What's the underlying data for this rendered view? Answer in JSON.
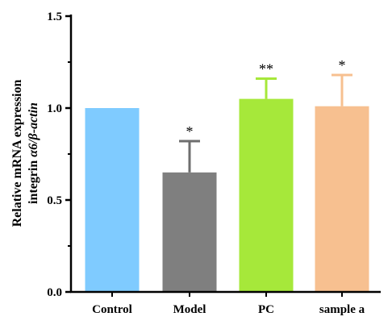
{
  "chart_data": {
    "type": "bar",
    "categories": [
      "Control",
      "Model",
      "PC",
      "sample a"
    ],
    "values": [
      1.0,
      0.65,
      1.05,
      1.01
    ],
    "errors": [
      0.0,
      0.17,
      0.11,
      0.17
    ],
    "significance": [
      "",
      "*",
      "**",
      "*"
    ],
    "colors": [
      "#7fcbff",
      "#7f7f7f",
      "#a6e83a",
      "#f7c090"
    ],
    "title": "",
    "xlabel": "",
    "ylabel": {
      "line1": "Relative mRNA expression",
      "line2_prefix": "integrin ",
      "line2_italic": "α6/β-actin"
    },
    "ylim": [
      0.0,
      1.5
    ],
    "yticks": [
      "0.0",
      "0.5",
      "1.0",
      "1.5"
    ],
    "grid": false,
    "legend": "none"
  }
}
